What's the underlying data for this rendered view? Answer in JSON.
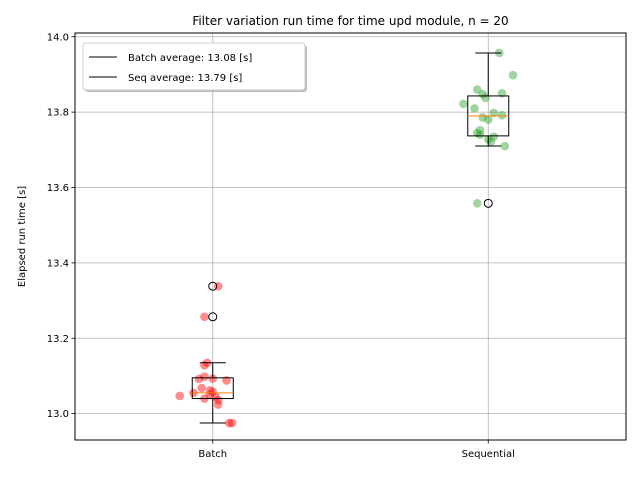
{
  "chart_data": {
    "type": "box",
    "title": "Filter variation run time for time upd module, n = 20",
    "xlabel": "",
    "ylabel": "Elapsed run time [s]",
    "categories": [
      "Batch",
      "Sequential"
    ],
    "ylim": [
      12.93,
      14.01
    ],
    "yticks": [
      13.0,
      13.2,
      13.4,
      13.6,
      13.8,
      14.0
    ],
    "ytick_labels": [
      "13.0",
      "13.2",
      "13.4",
      "13.6",
      "13.8",
      "14.0"
    ],
    "grid": true,
    "legend_position": "top-left",
    "legend": [
      {
        "label": "Batch average: 13.08 [s]",
        "color": "#000000"
      },
      {
        "label": "Seq average: 13.79 [s]",
        "color": "#000000"
      }
    ],
    "boxes": [
      {
        "category": "Batch",
        "whisker_low": 12.975,
        "q1": 13.04,
        "median": 13.055,
        "q3": 13.095,
        "whisker_high": 13.135,
        "fliers": [
          13.338,
          13.257
        ]
      },
      {
        "category": "Sequential",
        "whisker_low": 13.71,
        "q1": 13.737,
        "median": 13.79,
        "q3": 13.843,
        "whisker_high": 13.957,
        "fliers": [
          13.558
        ]
      }
    ],
    "series": [
      {
        "category": "Batch",
        "color": "#ff0000",
        "points": [
          {
            "x": 1.02,
            "y": 13.338
          },
          {
            "x": 0.97,
            "y": 13.257
          },
          {
            "x": 0.98,
            "y": 13.135
          },
          {
            "x": 0.97,
            "y": 13.128
          },
          {
            "x": 0.97,
            "y": 13.098
          },
          {
            "x": 1.0,
            "y": 13.093
          },
          {
            "x": 0.95,
            "y": 13.092
          },
          {
            "x": 1.05,
            "y": 13.088
          },
          {
            "x": 0.96,
            "y": 13.068
          },
          {
            "x": 0.99,
            "y": 13.062
          },
          {
            "x": 0.93,
            "y": 13.055
          },
          {
            "x": 0.99,
            "y": 13.05
          },
          {
            "x": 0.88,
            "y": 13.047
          },
          {
            "x": 1.01,
            "y": 13.045
          },
          {
            "x": 0.97,
            "y": 13.04
          },
          {
            "x": 1.02,
            "y": 13.036
          },
          {
            "x": 1.02,
            "y": 13.024
          },
          {
            "x": 1.07,
            "y": 12.975
          },
          {
            "x": 1.06,
            "y": 12.975
          },
          {
            "x": 1.0,
            "y": 13.058
          }
        ]
      },
      {
        "category": "Sequential",
        "color": "#2ca02c",
        "points": [
          {
            "x": 2.04,
            "y": 13.957
          },
          {
            "x": 2.09,
            "y": 13.898
          },
          {
            "x": 1.96,
            "y": 13.86
          },
          {
            "x": 1.98,
            "y": 13.848
          },
          {
            "x": 2.05,
            "y": 13.85
          },
          {
            "x": 1.99,
            "y": 13.838
          },
          {
            "x": 1.91,
            "y": 13.822
          },
          {
            "x": 1.95,
            "y": 13.81
          },
          {
            "x": 2.02,
            "y": 13.798
          },
          {
            "x": 2.05,
            "y": 13.792
          },
          {
            "x": 1.98,
            "y": 13.786
          },
          {
            "x": 2.0,
            "y": 13.78
          },
          {
            "x": 1.97,
            "y": 13.752
          },
          {
            "x": 1.96,
            "y": 13.745
          },
          {
            "x": 1.97,
            "y": 13.74
          },
          {
            "x": 2.02,
            "y": 13.735
          },
          {
            "x": 2.01,
            "y": 13.722
          },
          {
            "x": 2.06,
            "y": 13.71
          },
          {
            "x": 1.96,
            "y": 13.558
          },
          {
            "x": 2.0,
            "y": 13.728
          }
        ]
      }
    ]
  }
}
